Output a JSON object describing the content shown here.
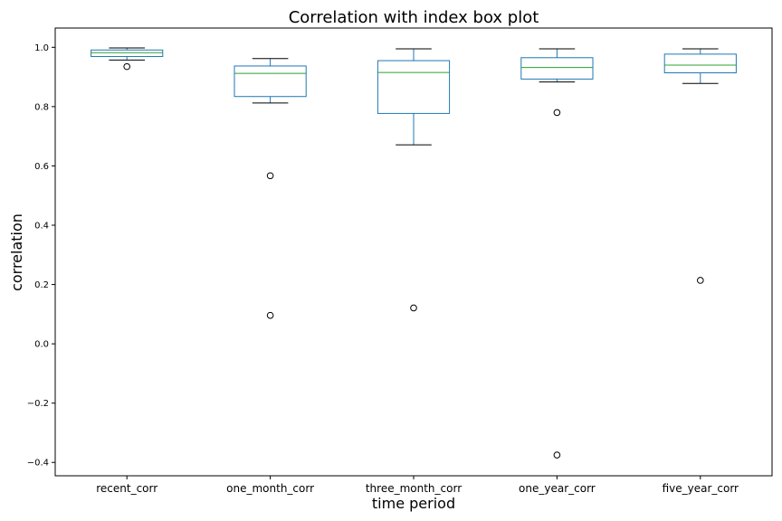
{
  "chart_data": {
    "type": "box",
    "title": "Correlation with index box plot",
    "xlabel": "time period",
    "ylabel": "correlation",
    "ylim": [
      -0.445,
      1.065
    ],
    "yticks": [
      1.0,
      0.8,
      0.6,
      0.4,
      0.2,
      0.0,
      -0.2,
      -0.4
    ],
    "ytick_labels": [
      "1.0",
      "0.8",
      "0.6",
      "0.4",
      "0.2",
      "0.0",
      "−0.2",
      "−0.4"
    ],
    "grid": false,
    "categories": [
      "recent_corr",
      "one_month_corr",
      "three_month_corr",
      "one_year_corr",
      "five_year_corr"
    ],
    "boxes": [
      {
        "whisker_low": 0.957,
        "q1": 0.969,
        "median": 0.982,
        "q3": 0.991,
        "whisker_high": 0.998,
        "outliers": [
          0.935
        ]
      },
      {
        "whisker_low": 0.812,
        "q1": 0.834,
        "median": 0.912,
        "q3": 0.937,
        "whisker_high": 0.962,
        "outliers": [
          0.567,
          0.096
        ]
      },
      {
        "whisker_low": 0.671,
        "q1": 0.777,
        "median": 0.915,
        "q3": 0.955,
        "whisker_high": 0.995,
        "outliers": [
          0.121
        ]
      },
      {
        "whisker_low": 0.883,
        "q1": 0.893,
        "median": 0.932,
        "q3": 0.965,
        "whisker_high": 0.995,
        "outliers": [
          0.78,
          -0.375
        ]
      },
      {
        "whisker_low": 0.878,
        "q1": 0.914,
        "median": 0.94,
        "q3": 0.977,
        "whisker_high": 0.995,
        "outliers": [
          0.214
        ]
      }
    ],
    "colors": {
      "box": "#1f77b4",
      "median": "#2ca02c",
      "whisker_cap": "#000000",
      "axis": "#000000"
    }
  }
}
